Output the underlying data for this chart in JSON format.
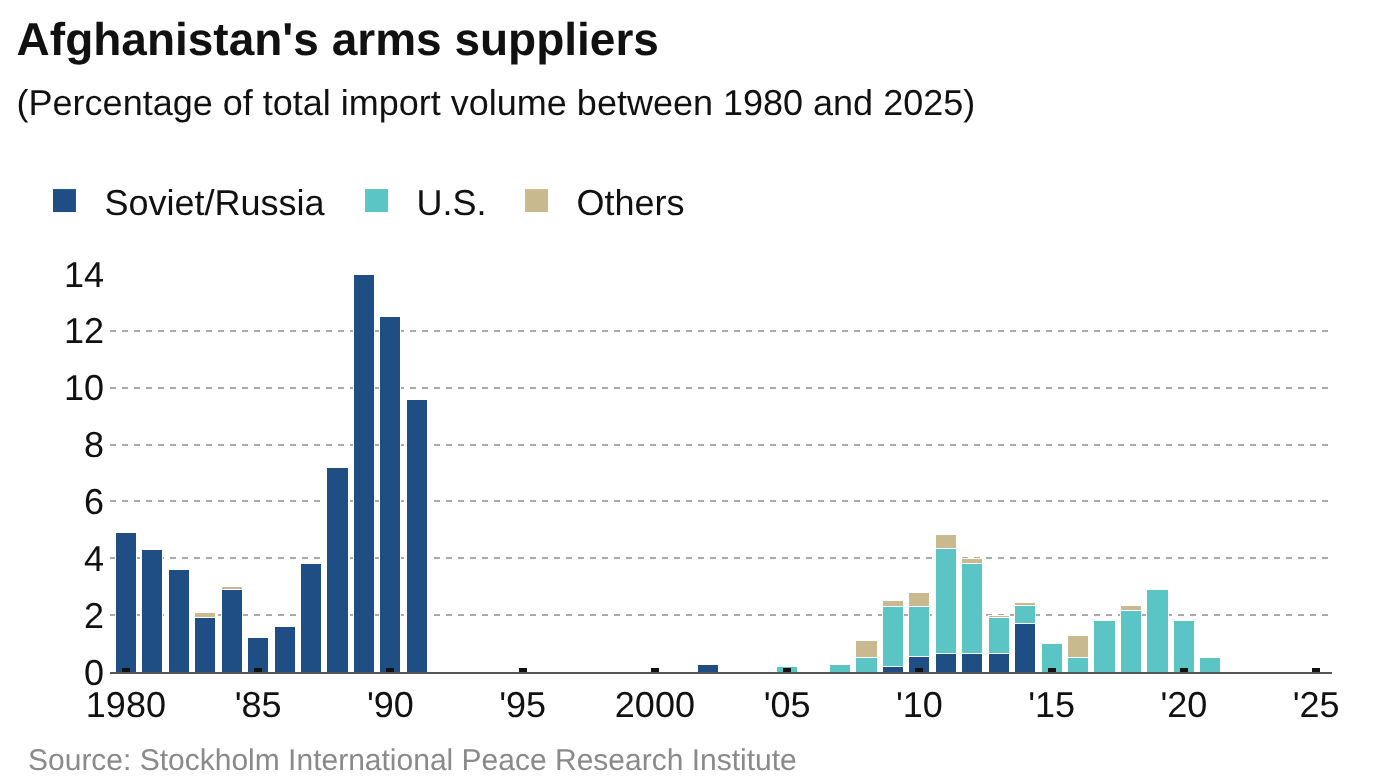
{
  "chart_data": {
    "type": "bar",
    "title": "Afghanistan's arms suppliers",
    "subtitle": "(Percentage of total import volume between 1980 and 2025)",
    "x": [
      1980,
      1981,
      1982,
      1983,
      1984,
      1985,
      1986,
      1987,
      1988,
      1989,
      1990,
      1991,
      2002,
      2005,
      2007,
      2008,
      2009,
      2010,
      2011,
      2012,
      2013,
      2014,
      2015,
      2016,
      2017,
      2018,
      2019,
      2020,
      2021
    ],
    "series": [
      {
        "name": "Soviet/Russia",
        "color": "#1f4e85",
        "values": [
          4.9,
          4.3,
          3.6,
          1.9,
          2.9,
          1.2,
          1.6,
          3.8,
          7.2,
          14,
          12.5,
          9.6,
          0.25,
          null,
          null,
          null,
          0.2,
          0.55,
          0.65,
          0.65,
          0.65,
          1.7,
          null,
          null,
          null,
          null,
          null,
          null,
          null
        ]
      },
      {
        "name": "U.S.",
        "color": "#5bc4c4",
        "values": [
          null,
          null,
          null,
          null,
          null,
          null,
          null,
          null,
          null,
          null,
          null,
          null,
          null,
          0.2,
          0.25,
          0.5,
          2.1,
          1.75,
          3.7,
          3.15,
          1.25,
          0.65,
          1.0,
          0.5,
          1.8,
          2.15,
          2.9,
          1.8,
          0.5
        ]
      },
      {
        "name": "Others",
        "color": "#c8b98f",
        "values": [
          null,
          null,
          null,
          0.2,
          0.1,
          null,
          null,
          null,
          null,
          null,
          null,
          null,
          null,
          null,
          null,
          0.6,
          0.2,
          0.5,
          0.5,
          0.2,
          0.1,
          0.1,
          null,
          0.8,
          null,
          0.2,
          null,
          null,
          null
        ]
      }
    ],
    "stacked": true,
    "xlim": [
      1979.4,
      2025.6
    ],
    "xticks": [
      {
        "value": 1980,
        "label": "1980"
      },
      {
        "value": 1985,
        "label": "'85"
      },
      {
        "value": 1990,
        "label": "'90"
      },
      {
        "value": 1995,
        "label": "'95"
      },
      {
        "value": 2000,
        "label": "2000"
      },
      {
        "value": 2005,
        "label": "'05"
      },
      {
        "value": 2010,
        "label": "'10"
      },
      {
        "value": 2015,
        "label": "'15"
      },
      {
        "value": 2020,
        "label": "'20"
      },
      {
        "value": 2025,
        "label": "'25"
      }
    ],
    "ylim": [
      0,
      14
    ],
    "yticks": [
      0,
      2,
      4,
      6,
      8,
      10,
      12,
      14
    ],
    "grid": "y",
    "legend": "top left",
    "annotations": [
      "Source: Stockholm International Peace Research Institute"
    ]
  }
}
